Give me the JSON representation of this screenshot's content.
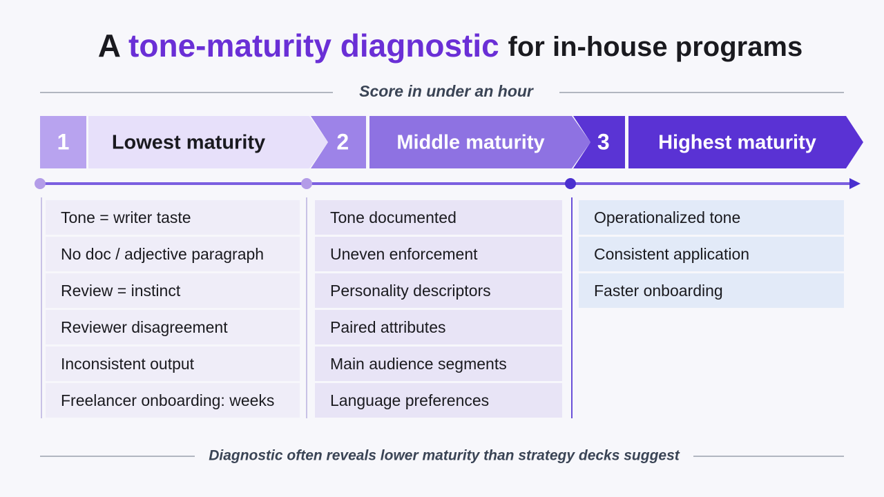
{
  "title": {
    "prefix": "A",
    "highlight": "tone-maturity diagnostic",
    "suffix": "for in-house programs"
  },
  "subtitle": "Score in under an hour",
  "stages": [
    {
      "number": "1",
      "label": "Lowest maturity",
      "items": [
        "Tone = writer taste",
        "No doc / adjective paragraph",
        "Review = instinct",
        "Reviewer disagreement",
        "Inconsistent output",
        "Freelancer onboarding: weeks"
      ]
    },
    {
      "number": "2",
      "label": "Middle maturity",
      "items": [
        "Tone documented",
        "Uneven enforcement",
        "Personality descriptors",
        "Paired attributes",
        "Main audience segments",
        "Language preferences"
      ]
    },
    {
      "number": "3",
      "label": "Highest maturity",
      "items": [
        "Operationalized tone",
        "Consistent application",
        "Faster onboarding"
      ]
    }
  ],
  "footer": "Diagnostic often reveals lower maturity than strategy decks suggest"
}
